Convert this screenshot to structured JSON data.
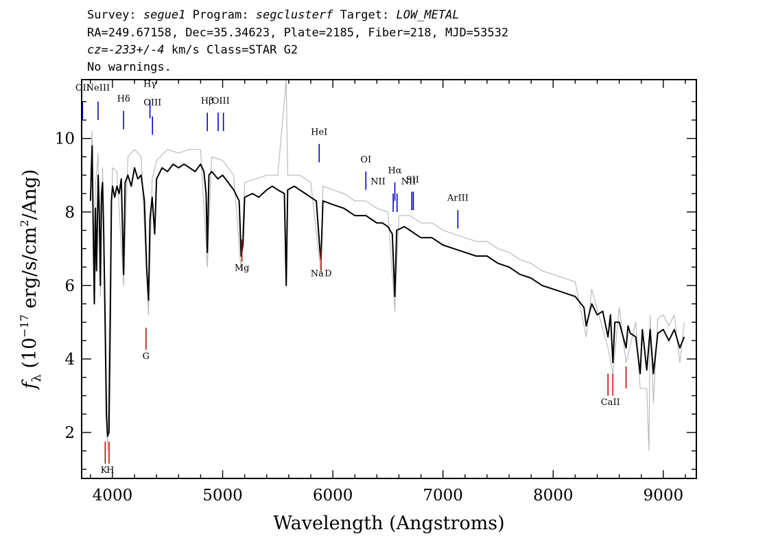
{
  "header": {
    "survey_label": "Survey:",
    "survey": "segue1",
    "program_label": "Program:",
    "program": "segclusterf",
    "target_label": "Target:",
    "target": "LOW_METAL",
    "line2": "RA=249.67158, Dec=35.34623, Plate=2185, Fiber=218, MJD=53532",
    "cz_label": "cz=",
    "cz_value": "-233+/-4",
    "cz_rest": " km/s Class=STAR G2",
    "line4": "No warnings."
  },
  "chart_data": {
    "type": "line",
    "xlabel": "Wavelength (Angstroms)",
    "ylabel_main": "f",
    "ylabel_sub": "λ",
    "ylabel_rest_a": " (10",
    "ylabel_exp": "−17",
    "ylabel_rest_b": " erg/s/cm",
    "ylabel_exp2": "2",
    "ylabel_rest_c": "/Ang)",
    "xlim": [
      3720,
      9300
    ],
    "ylim": [
      0.75,
      11.6
    ],
    "xticks": [
      4000,
      5000,
      6000,
      7000,
      8000,
      9000
    ],
    "xtick_labels": [
      "4000",
      "5000",
      "6000",
      "7000",
      "8000",
      "9000"
    ],
    "yticks": [
      2,
      4,
      6,
      8,
      10
    ],
    "ytick_labels": [
      "2",
      "4",
      "6",
      "8",
      "10"
    ],
    "grid": false,
    "series": [
      {
        "role": "flux",
        "color": "#000000",
        "points": [
          [
            3800,
            8.3
          ],
          [
            3815,
            9.8
          ],
          [
            3825,
            7.5
          ],
          [
            3835,
            5.5
          ],
          [
            3845,
            8.1
          ],
          [
            3855,
            6.4
          ],
          [
            3870,
            9.0
          ],
          [
            3880,
            8.0
          ],
          [
            3890,
            6.0
          ],
          [
            3900,
            8.5
          ],
          [
            3910,
            8.8
          ],
          [
            3920,
            7.5
          ],
          [
            3933,
            5.0
          ],
          [
            3945,
            2.5
          ],
          [
            3955,
            1.9
          ],
          [
            3968,
            2.0
          ],
          [
            3980,
            5.0
          ],
          [
            3990,
            8.3
          ],
          [
            4000,
            8.7
          ],
          [
            4020,
            8.4
          ],
          [
            4040,
            8.7
          ],
          [
            4060,
            8.5
          ],
          [
            4080,
            8.9
          ],
          [
            4101,
            6.3
          ],
          [
            4115,
            8.8
          ],
          [
            4140,
            9.0
          ],
          [
            4170,
            8.7
          ],
          [
            4200,
            9.2
          ],
          [
            4230,
            8.9
          ],
          [
            4260,
            9.0
          ],
          [
            4290,
            8.3
          ],
          [
            4310,
            6.5
          ],
          [
            4327,
            5.6
          ],
          [
            4340,
            7.8
          ],
          [
            4360,
            8.4
          ],
          [
            4383,
            7.4
          ],
          [
            4400,
            8.9
          ],
          [
            4450,
            9.2
          ],
          [
            4500,
            9.1
          ],
          [
            4550,
            9.3
          ],
          [
            4600,
            9.2
          ],
          [
            4650,
            9.3
          ],
          [
            4700,
            9.2
          ],
          [
            4750,
            9.1
          ],
          [
            4800,
            9.3
          ],
          [
            4830,
            9.1
          ],
          [
            4850,
            8.5
          ],
          [
            4861,
            6.9
          ],
          [
            4875,
            9.0
          ],
          [
            4900,
            9.1
          ],
          [
            4957,
            8.9
          ],
          [
            5000,
            9.0
          ],
          [
            5050,
            8.8
          ],
          [
            5100,
            8.6
          ],
          [
            5150,
            8.3
          ],
          [
            5168,
            6.8
          ],
          [
            5184,
            7.1
          ],
          [
            5200,
            8.4
          ],
          [
            5270,
            8.5
          ],
          [
            5328,
            8.4
          ],
          [
            5400,
            8.6
          ],
          [
            5450,
            8.7
          ],
          [
            5500,
            8.6
          ],
          [
            5560,
            8.5
          ],
          [
            5577,
            6.0
          ],
          [
            5590,
            8.6
          ],
          [
            5650,
            8.7
          ],
          [
            5700,
            8.6
          ],
          [
            5750,
            8.5
          ],
          [
            5800,
            8.4
          ],
          [
            5850,
            8.3
          ],
          [
            5885,
            6.9
          ],
          [
            5893,
            6.7
          ],
          [
            5910,
            8.3
          ],
          [
            6000,
            8.2
          ],
          [
            6100,
            8.1
          ],
          [
            6200,
            7.9
          ],
          [
            6300,
            7.9
          ],
          [
            6350,
            7.8
          ],
          [
            6400,
            7.7
          ],
          [
            6450,
            7.7
          ],
          [
            6500,
            7.6
          ],
          [
            6540,
            7.4
          ],
          [
            6563,
            5.7
          ],
          [
            6580,
            7.5
          ],
          [
            6650,
            7.6
          ],
          [
            6700,
            7.5
          ],
          [
            6750,
            7.4
          ],
          [
            6800,
            7.3
          ],
          [
            6900,
            7.3
          ],
          [
            7000,
            7.1
          ],
          [
            7100,
            7.0
          ],
          [
            7200,
            6.9
          ],
          [
            7300,
            6.8
          ],
          [
            7400,
            6.8
          ],
          [
            7500,
            6.6
          ],
          [
            7600,
            6.5
          ],
          [
            7700,
            6.3
          ],
          [
            7800,
            6.2
          ],
          [
            7900,
            6.0
          ],
          [
            8000,
            5.9
          ],
          [
            8100,
            5.8
          ],
          [
            8200,
            5.7
          ],
          [
            8280,
            5.4
          ],
          [
            8300,
            4.9
          ],
          [
            8350,
            5.5
          ],
          [
            8400,
            5.2
          ],
          [
            8450,
            5.3
          ],
          [
            8498,
            4.6
          ],
          [
            8520,
            5.2
          ],
          [
            8542,
            3.9
          ],
          [
            8560,
            5.0
          ],
          [
            8600,
            5.0
          ],
          [
            8662,
            4.3
          ],
          [
            8680,
            4.9
          ],
          [
            8700,
            4.7
          ],
          [
            8750,
            4.6
          ],
          [
            8790,
            3.6
          ],
          [
            8810,
            4.8
          ],
          [
            8850,
            3.7
          ],
          [
            8880,
            4.8
          ],
          [
            8910,
            3.6
          ],
          [
            8950,
            4.7
          ],
          [
            9000,
            4.8
          ],
          [
            9050,
            4.5
          ],
          [
            9100,
            4.8
          ],
          [
            9150,
            4.3
          ],
          [
            9190,
            4.6
          ]
        ]
      },
      {
        "role": "error",
        "color": "#bbbbbb",
        "points": [
          [
            3800,
            8.8
          ],
          [
            3815,
            10.2
          ],
          [
            3830,
            6.9
          ],
          [
            3845,
            8.7
          ],
          [
            3870,
            9.6
          ],
          [
            3890,
            5.7
          ],
          [
            3910,
            9.2
          ],
          [
            3933,
            5.6
          ],
          [
            3955,
            1.5
          ],
          [
            3975,
            5.4
          ],
          [
            4000,
            9.2
          ],
          [
            4040,
            9.1
          ],
          [
            4101,
            6.0
          ],
          [
            4140,
            9.5
          ],
          [
            4200,
            9.7
          ],
          [
            4260,
            9.5
          ],
          [
            4327,
            5.2
          ],
          [
            4360,
            8.9
          ],
          [
            4400,
            9.4
          ],
          [
            4500,
            9.7
          ],
          [
            4600,
            9.6
          ],
          [
            4700,
            9.7
          ],
          [
            4800,
            9.7
          ],
          [
            4861,
            6.5
          ],
          [
            4900,
            9.5
          ],
          [
            5000,
            9.4
          ],
          [
            5100,
            9.0
          ],
          [
            5168,
            6.4
          ],
          [
            5200,
            8.8
          ],
          [
            5300,
            8.9
          ],
          [
            5400,
            9.0
          ],
          [
            5500,
            9.0
          ],
          [
            5577,
            11.6
          ],
          [
            5590,
            9.0
          ],
          [
            5700,
            9.0
          ],
          [
            5800,
            8.8
          ],
          [
            5893,
            6.3
          ],
          [
            5910,
            8.7
          ],
          [
            6000,
            8.6
          ],
          [
            6100,
            8.5
          ],
          [
            6200,
            8.3
          ],
          [
            6300,
            8.3
          ],
          [
            6400,
            8.1
          ],
          [
            6500,
            8.0
          ],
          [
            6563,
            5.3
          ],
          [
            6600,
            7.9
          ],
          [
            6700,
            7.9
          ],
          [
            6800,
            7.7
          ],
          [
            6900,
            7.7
          ],
          [
            7000,
            7.5
          ],
          [
            7100,
            7.4
          ],
          [
            7200,
            7.3
          ],
          [
            7300,
            7.2
          ],
          [
            7400,
            7.2
          ],
          [
            7500,
            7.0
          ],
          [
            7600,
            6.9
          ],
          [
            7700,
            6.7
          ],
          [
            7800,
            6.6
          ],
          [
            7900,
            6.4
          ],
          [
            8000,
            6.3
          ],
          [
            8100,
            6.2
          ],
          [
            8200,
            6.1
          ],
          [
            8300,
            4.6
          ],
          [
            8350,
            5.9
          ],
          [
            8498,
            4.3
          ],
          [
            8542,
            3.6
          ],
          [
            8600,
            5.4
          ],
          [
            8662,
            3.9
          ],
          [
            8750,
            5.0
          ],
          [
            8790,
            3.2
          ],
          [
            8850,
            3.2
          ],
          [
            8870,
            1.5
          ],
          [
            8880,
            5.2
          ],
          [
            8910,
            2.8
          ],
          [
            8950,
            5.1
          ],
          [
            9000,
            5.2
          ],
          [
            9050,
            4.9
          ],
          [
            9100,
            5.2
          ],
          [
            9150,
            3.9
          ],
          [
            9190,
            5.0
          ]
        ]
      }
    ],
    "line_markers": [
      {
        "label": "OII",
        "wave": 3728,
        "color": "#0000cc",
        "y_lo": 10.5,
        "y_hi": 11.0,
        "label_y": 11.3
      },
      {
        "label": "NeIII",
        "wave": 3869,
        "color": "#0000cc",
        "y_lo": 10.5,
        "y_hi": 11.0,
        "label_y": 11.3
      },
      {
        "label": "Hδ",
        "wave": 4101,
        "color": "#0000cc",
        "y_lo": 10.25,
        "y_hi": 10.75,
        "label_y": 11.0
      },
      {
        "label": "Hγ",
        "wave": 4340,
        "color": "#0000cc",
        "y_lo": 10.55,
        "y_hi": 11.05,
        "label_y": 11.4
      },
      {
        "label": "OIII",
        "wave": 4363,
        "color": "#0000cc",
        "y_lo": 10.1,
        "y_hi": 10.6,
        "label_y": 10.9
      },
      {
        "label": "Hβ",
        "wave": 4861,
        "color": "#0000cc",
        "y_lo": 10.2,
        "y_hi": 10.7,
        "label_y": 10.95
      },
      {
        "label": "OIII",
        "wave": 4959,
        "color": "#0000cc",
        "y_lo": 10.2,
        "y_hi": 10.7,
        "label_y": 10.95
      },
      {
        "label": "OIII",
        "wave": 5007,
        "color": "#0000cc",
        "y_lo": 10.2,
        "y_hi": 10.7,
        "label_y": 10.95
      },
      {
        "label": "HeI",
        "wave": 5876,
        "color": "#0000cc",
        "y_lo": 9.35,
        "y_hi": 9.85,
        "label_y": 10.1
      },
      {
        "label": "OI",
        "wave": 6300,
        "color": "#0000cc",
        "y_lo": 8.6,
        "y_hi": 9.1,
        "label_y": 9.35
      },
      {
        "label": "NII",
        "wave": 6548,
        "color": "#0000cc",
        "y_lo": 8.0,
        "y_hi": 8.5,
        "label_y": 8.75
      },
      {
        "label": "Hα",
        "wave": 6563,
        "color": "#0000cc",
        "y_lo": 8.3,
        "y_hi": 8.8,
        "label_y": 9.05
      },
      {
        "label": "NII",
        "wave": 6583,
        "color": "#0000cc",
        "y_lo": 8.0,
        "y_hi": 8.5,
        "label_y": 8.75
      },
      {
        "label": "SII",
        "wave": 6717,
        "color": "#0000cc",
        "y_lo": 8.05,
        "y_hi": 8.55,
        "label_y": 8.8
      },
      {
        "label": "SII",
        "wave": 6731,
        "color": "#0000cc",
        "y_lo": 8.05,
        "y_hi": 8.55,
        "label_y": 8.8
      },
      {
        "label": "ArIII",
        "wave": 7135,
        "color": "#0000cc",
        "y_lo": 7.55,
        "y_hi": 8.05,
        "label_y": 8.3
      },
      {
        "label": "K",
        "wave": 3934,
        "color": "#cc0000",
        "y_lo": 1.15,
        "y_hi": 1.75,
        "label_y": 0.9
      },
      {
        "label": "H",
        "wave": 3969,
        "color": "#cc0000",
        "y_lo": 1.15,
        "y_hi": 1.75,
        "label_y": 0.9
      },
      {
        "label": "G",
        "wave": 4304,
        "color": "#cc0000",
        "y_lo": 4.25,
        "y_hi": 4.85,
        "label_y": 4.0
      },
      {
        "label": "Mg",
        "wave": 5175,
        "color": "#cc0000",
        "y_lo": 6.65,
        "y_hi": 7.25,
        "label_y": 6.4
      },
      {
        "label": "Na",
        "wave": 5894,
        "color": "#cc0000",
        "y_lo": 6.4,
        "y_hi": 7.0,
        "label_y": 6.25
      },
      {
        "label": "CaII",
        "wave": 8498,
        "color": "#cc0000",
        "y_lo": 3.0,
        "y_hi": 3.6,
        "label_y": 2.75
      },
      {
        "label": "CaII",
        "wave": 8542,
        "color": "#cc0000",
        "y_lo": 3.0,
        "y_hi": 3.6,
        "label_y": 2.75
      },
      {
        "label": "CaII",
        "wave": 8662,
        "color": "#cc0000",
        "y_lo": 3.2,
        "y_hi": 3.8,
        "label_y": 2.75
      }
    ],
    "marker_labels": [
      {
        "text": "OII",
        "wave": 3728,
        "y": 11.3
      },
      {
        "text": "NeIII",
        "wave": 3869,
        "y": 11.3
      },
      {
        "text": "Hδ",
        "wave": 4101,
        "y": 11.0
      },
      {
        "text": "Hγ",
        "wave": 4340,
        "y": 11.4
      },
      {
        "text": "OIII",
        "wave": 4363,
        "y": 10.9
      },
      {
        "text": "Hβ",
        "wave": 4861,
        "y": 10.95
      },
      {
        "text": "OIII",
        "wave": 4983,
        "y": 10.95
      },
      {
        "text": "HeI",
        "wave": 5876,
        "y": 10.1
      },
      {
        "text": "OI",
        "wave": 6300,
        "y": 9.35
      },
      {
        "text": "NII",
        "wave": 6410,
        "y": 8.75
      },
      {
        "text": "Hα",
        "wave": 6563,
        "y": 9.05
      },
      {
        "text": "NII",
        "wave": 6688,
        "y": 8.75
      },
      {
        "text": "SII",
        "wave": 6724,
        "y": 8.8
      },
      {
        "text": "ArIII",
        "wave": 7135,
        "y": 8.3
      },
      {
        "text": "K",
        "wave": 3922,
        "y": 0.9
      },
      {
        "text": "H",
        "wave": 3980,
        "y": 0.9
      },
      {
        "text": "G",
        "wave": 4304,
        "y": 4.0
      },
      {
        "text": "Mg",
        "wave": 5175,
        "y": 6.4
      },
      {
        "text": "Na",
        "wave": 5858,
        "y": 6.25
      },
      {
        "text": "D",
        "wave": 5958,
        "y": 6.25
      },
      {
        "text": "CaII",
        "wave": 8520,
        "y": 2.75
      }
    ]
  }
}
